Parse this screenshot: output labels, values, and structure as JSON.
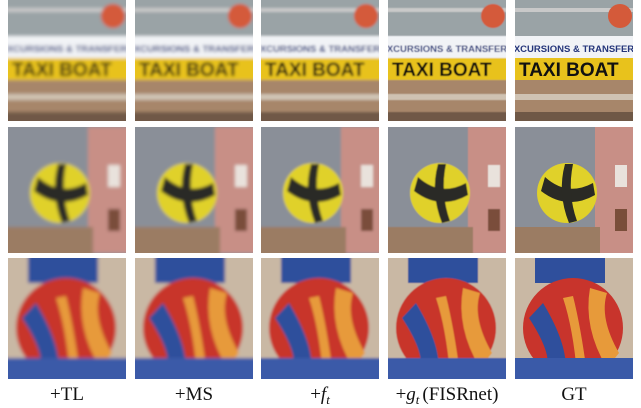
{
  "figure": {
    "sign": {
      "line1": "EXCURSIONS & TRANSFERS",
      "line2": "TAXI BOAT"
    },
    "captions": [
      {
        "text": "+TL"
      },
      {
        "text": "+MS"
      },
      {
        "text": "+",
        "var": "f",
        "sub": "t"
      },
      {
        "text": "+",
        "var": "g",
        "sub": "t",
        "after": "(FISRnet)"
      },
      {
        "text": "GT"
      }
    ]
  }
}
